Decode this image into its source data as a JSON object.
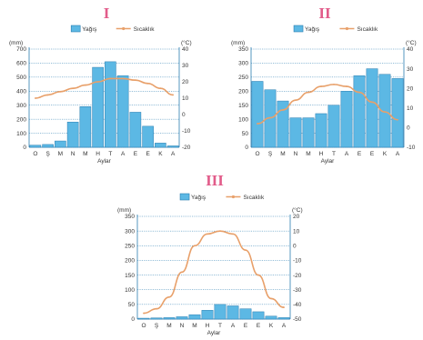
{
  "chart_data": [
    {
      "type": "bar",
      "title": "I",
      "categories": [
        "O",
        "Ş",
        "M",
        "N",
        "M",
        "H",
        "T",
        "A",
        "E",
        "E",
        "K",
        "A"
      ],
      "xlabel": "Aylar",
      "series": [
        {
          "name": "Yağış",
          "type": "bar",
          "axis": "left",
          "values": [
            15,
            20,
            45,
            180,
            290,
            570,
            610,
            510,
            250,
            150,
            30,
            10
          ]
        },
        {
          "name": "Sıcaklık",
          "type": "line",
          "axis": "right",
          "values": [
            10,
            12,
            14,
            16,
            18,
            20,
            22,
            22,
            21,
            19,
            16,
            12
          ]
        }
      ],
      "left_axis": {
        "unit": "(mm)",
        "ylim": [
          0,
          700
        ],
        "ticks": [
          0,
          100,
          200,
          300,
          400,
          500,
          600,
          700
        ]
      },
      "right_axis": {
        "unit": "(°C)",
        "ylim": [
          -20,
          40
        ],
        "ticks": [
          -20,
          -10,
          0,
          10,
          20,
          30,
          40
        ],
        "tick_labels": [
          "-20",
          "-10",
          "0",
          "10",
          "20",
          "30",
          "40"
        ]
      },
      "grid": true,
      "legend_position": "top"
    },
    {
      "type": "bar",
      "title": "II",
      "categories": [
        "O",
        "Ş",
        "M",
        "N",
        "M",
        "H",
        "T",
        "A",
        "E",
        "E",
        "K",
        "A"
      ],
      "xlabel": "Aylar",
      "series": [
        {
          "name": "Yağış",
          "type": "bar",
          "axis": "left",
          "values": [
            235,
            205,
            165,
            105,
            105,
            120,
            150,
            200,
            255,
            280,
            260,
            245
          ]
        },
        {
          "name": "Sıcaklık",
          "type": "line",
          "axis": "right",
          "values": [
            2,
            5,
            9,
            14,
            18,
            21,
            22,
            21,
            18,
            13,
            8,
            4
          ]
        }
      ],
      "left_axis": {
        "unit": "(mm)",
        "ylim": [
          0,
          350
        ],
        "ticks": [
          0,
          50,
          100,
          150,
          200,
          250,
          300,
          350
        ]
      },
      "right_axis": {
        "unit": "(°C)",
        "ylim": [
          -10,
          40
        ],
        "ticks": [
          -10,
          0,
          10,
          20,
          30,
          40
        ],
        "tick_labels": [
          "-10",
          "0",
          "10",
          "20",
          "30",
          "40"
        ]
      },
      "grid": true,
      "legend_position": "top"
    },
    {
      "type": "bar",
      "title": "III",
      "categories": [
        "O",
        "Ş",
        "M",
        "N",
        "M",
        "H",
        "T",
        "A",
        "E",
        "E",
        "K",
        "A"
      ],
      "xlabel": "Aylar",
      "series": [
        {
          "name": "Yağış",
          "type": "bar",
          "axis": "left",
          "values": [
            3,
            4,
            5,
            8,
            15,
            30,
            50,
            45,
            35,
            25,
            10,
            5
          ]
        },
        {
          "name": "Sıcaklık",
          "type": "line",
          "axis": "right",
          "values": [
            -46,
            -43,
            -35,
            -18,
            0,
            8,
            10,
            8,
            -3,
            -20,
            -36,
            -42
          ]
        }
      ],
      "left_axis": {
        "unit": "(mm)",
        "ylim": [
          0,
          350
        ],
        "ticks": [
          0,
          50,
          100,
          150,
          200,
          250,
          300,
          350
        ]
      },
      "right_axis": {
        "unit": "(°C)",
        "ylim": [
          -50,
          20
        ],
        "ticks": [
          -50,
          -40,
          -30,
          -20,
          -10,
          0,
          10,
          20
        ],
        "tick_labels": [
          "-50",
          "-40",
          "-30",
          "-20",
          "-10",
          "0",
          "10",
          "20"
        ]
      },
      "grid": true,
      "legend_position": "top"
    }
  ],
  "colors": {
    "bar_fill": "#5cb8e4",
    "bar_stroke": "#2a7db0",
    "line": "#e8a06a",
    "grid": "#2a7db0",
    "axis": "#2a7db0",
    "roman": "#e25c8a"
  }
}
